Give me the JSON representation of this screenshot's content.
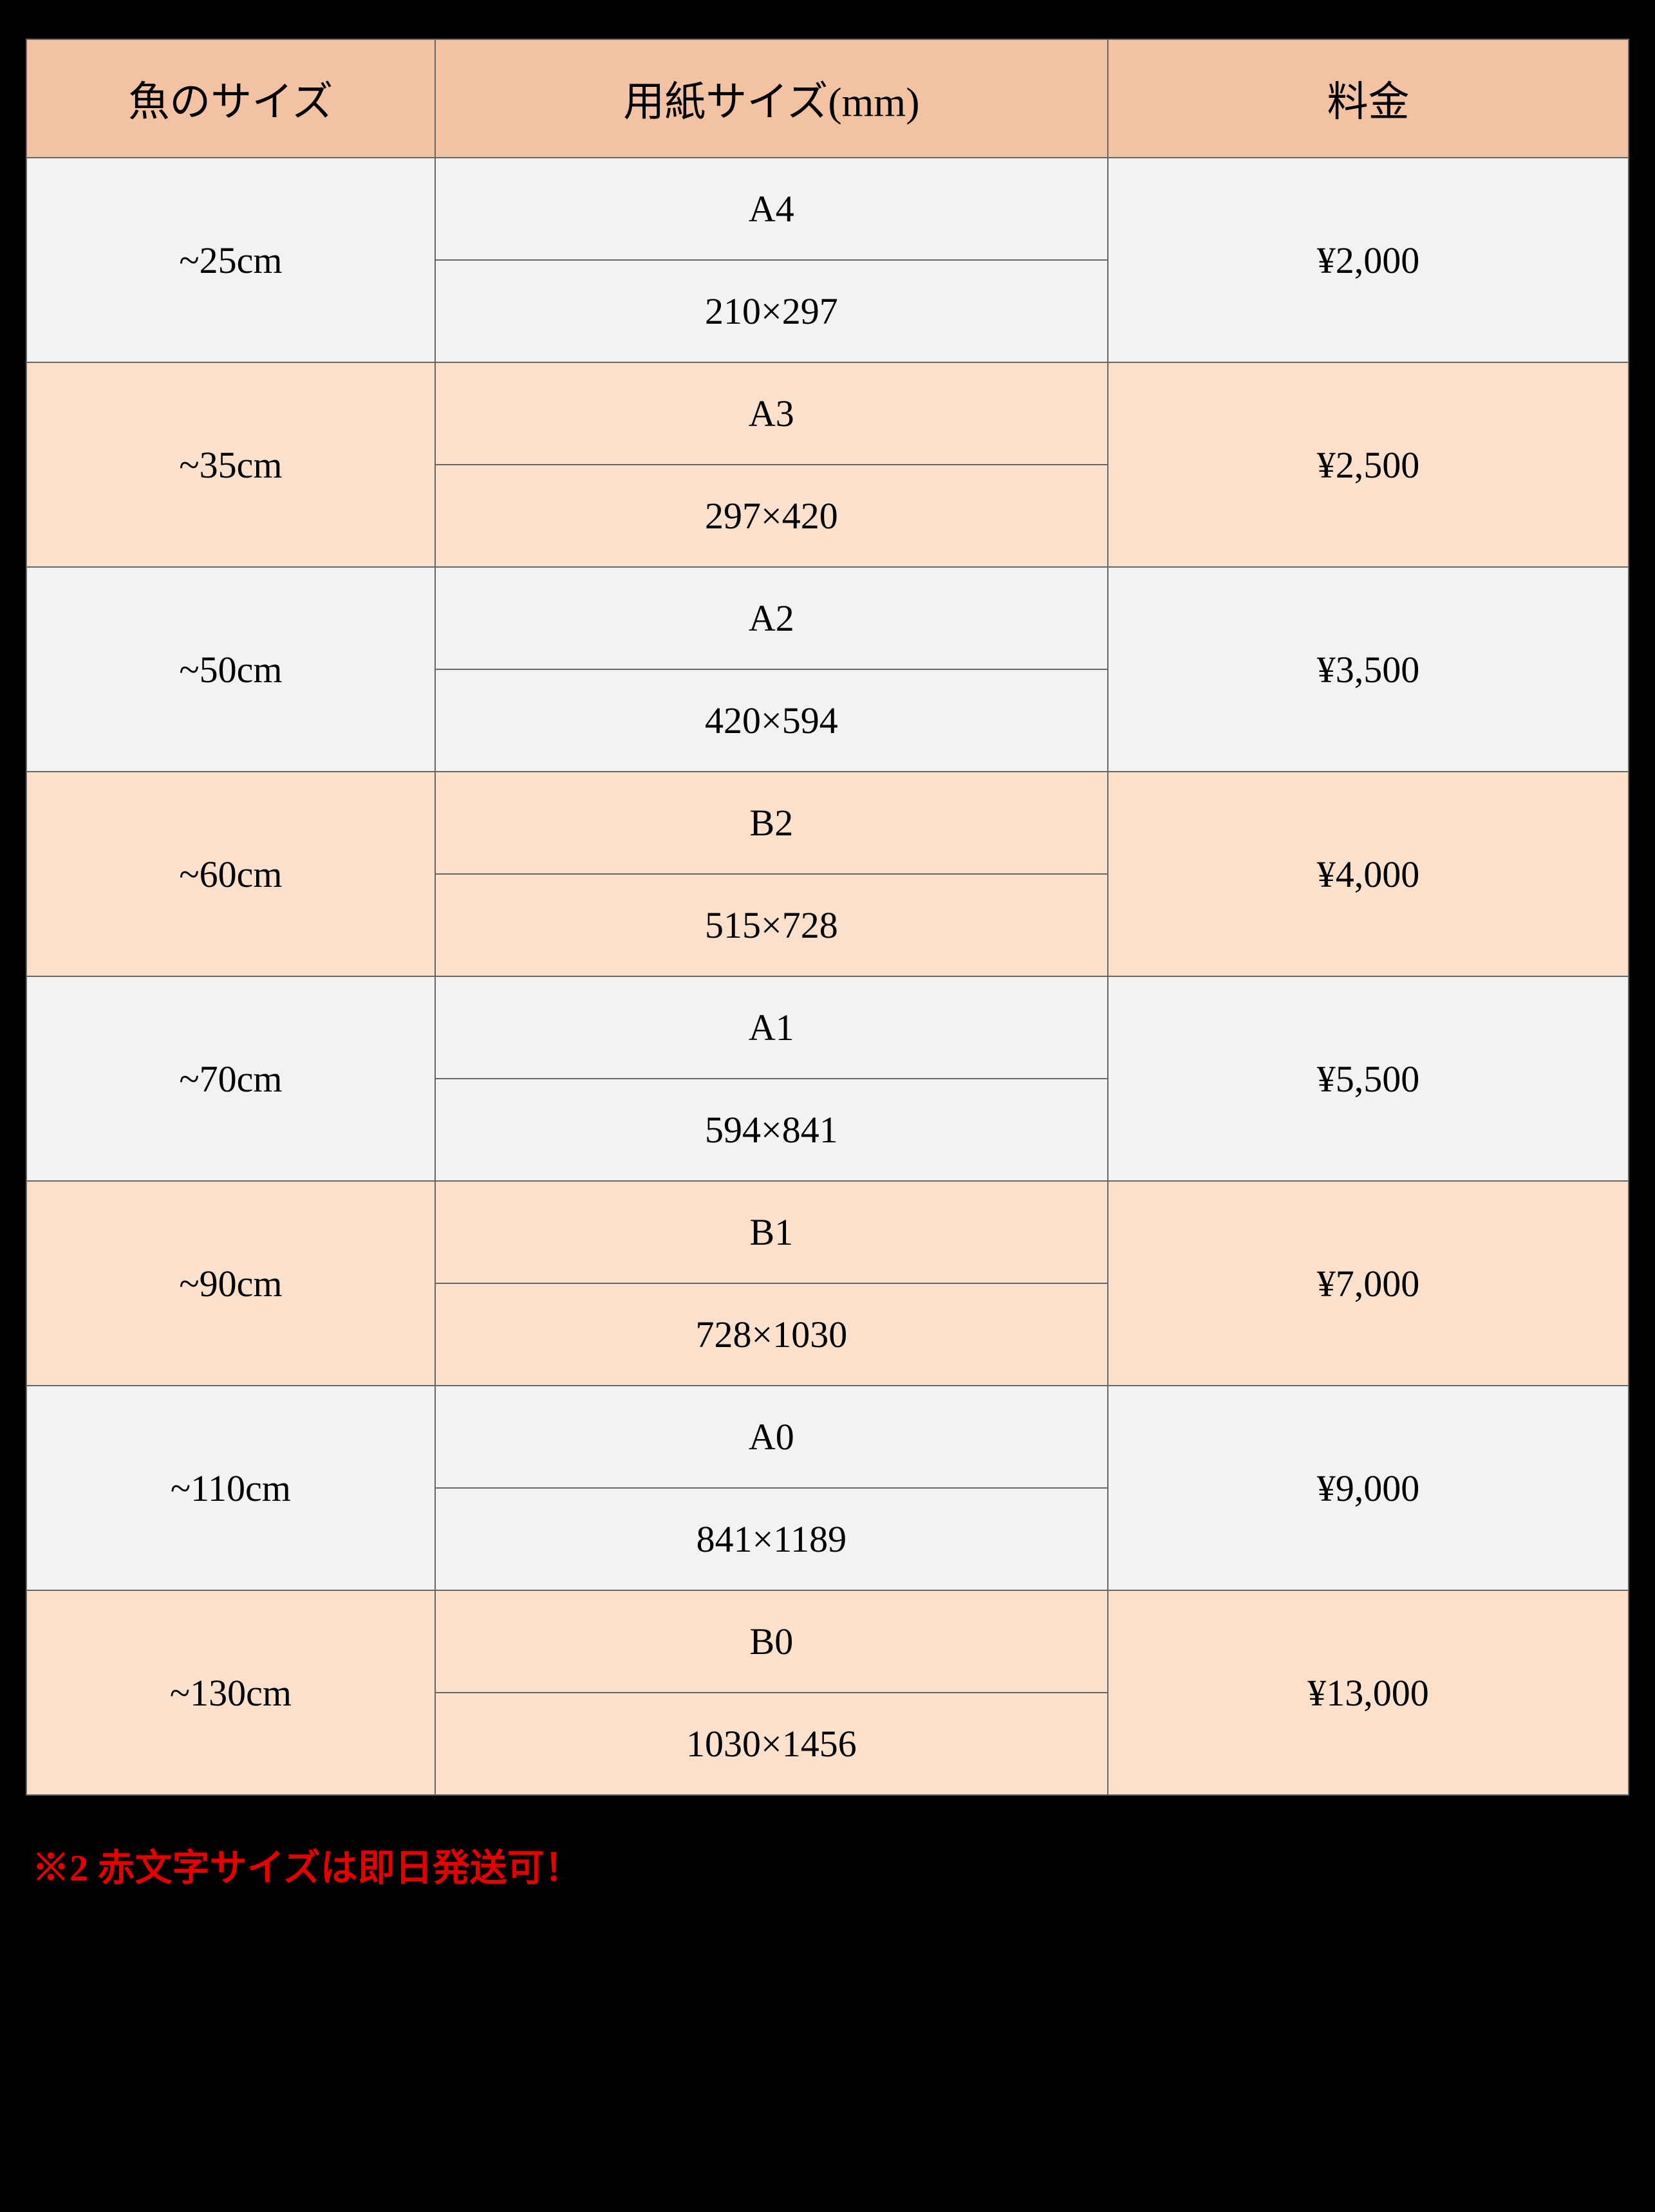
{
  "columns": [
    "魚のサイズ",
    "用紙サイズ(mm)",
    "料金"
  ],
  "colors": {
    "header_bg": "#f2c2a3",
    "row_light_bg": "#f2f2f2",
    "row_peach_bg": "#fbe0cc",
    "border": "#666666",
    "text": "#000000",
    "accent_red": "#e30000",
    "page_bg": "#000000"
  },
  "column_widths_pct": [
    25.5,
    42,
    32.5
  ],
  "rows": [
    {
      "fish_size": "~25cm",
      "paper_name": "A4",
      "paper_dim": "210×297",
      "price": "¥2,000",
      "bg": "light"
    },
    {
      "fish_size": "~35cm",
      "paper_name": "A3",
      "paper_dim": "297×420",
      "price": "¥2,500",
      "bg": "peach"
    },
    {
      "fish_size": "~50cm",
      "paper_name": "A2",
      "paper_dim": "420×594",
      "price": "¥3,500",
      "bg": "light"
    },
    {
      "fish_size": "~60cm",
      "paper_name": "B2",
      "paper_dim": "515×728",
      "price": "¥4,000",
      "bg": "peach"
    },
    {
      "fish_size": "~70cm",
      "paper_name": "A1",
      "paper_dim": "594×841",
      "price": "¥5,500",
      "bg": "light"
    },
    {
      "fish_size": "~90cm",
      "paper_name": "B1",
      "paper_dim": "728×1030",
      "price": "¥7,000",
      "bg": "peach"
    },
    {
      "fish_size": "~110cm",
      "paper_name": "A0",
      "paper_dim": "841×1189",
      "price": "¥9,000",
      "bg": "light"
    },
    {
      "fish_size": "~130cm",
      "paper_name": "B0",
      "paper_dim": "1030×1456",
      "price": "¥13,000",
      "bg": "peach"
    }
  ],
  "footnote": "※2 赤文字サイズは即日発送可！"
}
